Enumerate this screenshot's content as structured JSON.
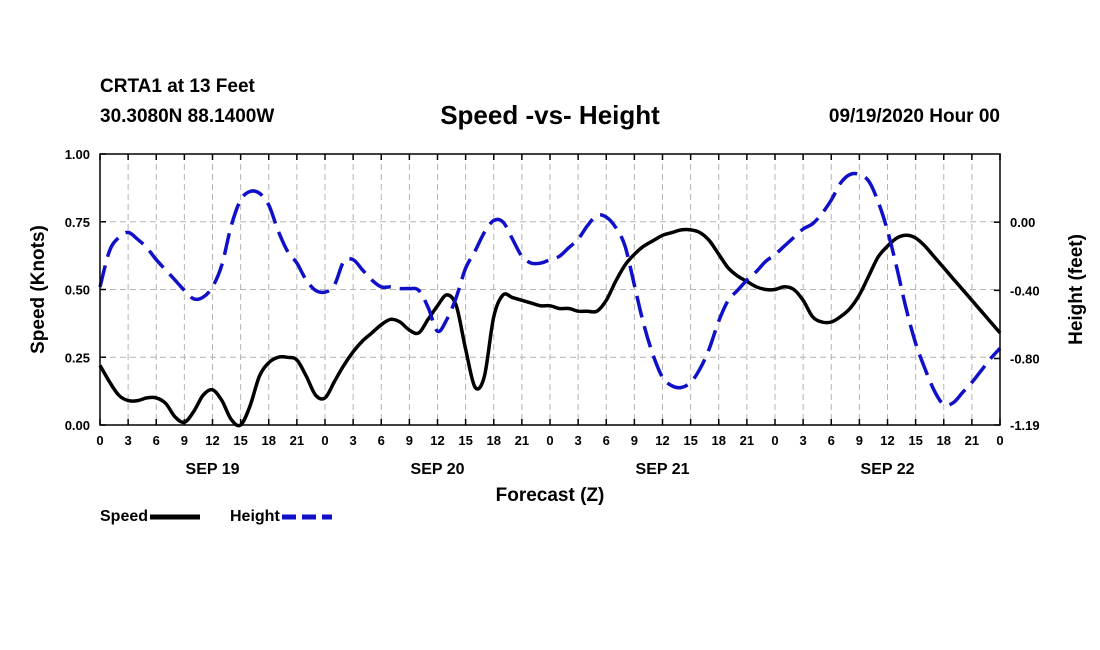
{
  "header": {
    "station": "CRTA1 at 13 Feet",
    "coords": "30.3080N 88.1400W",
    "title": "Speed -vs- Height",
    "datetime": "09/19/2020 Hour 00"
  },
  "legend": {
    "speed": "Speed",
    "height": "Height"
  },
  "colors": {
    "speed": "#000000",
    "height": "#1010c8",
    "grid": "#b4b4b4"
  },
  "chart_data": {
    "type": "line",
    "title": "Speed -vs- Height",
    "xlabel": "Forecast (Z)",
    "ylabel": "Speed (Knots)",
    "y2label": "Height (feet)",
    "xlim": [
      0,
      96
    ],
    "ylim": [
      0,
      1.0
    ],
    "y2lim": [
      -1.19,
      0.4
    ],
    "yticks": [
      "0.00",
      "0.25",
      "0.50",
      "0.75",
      "1.00"
    ],
    "y2ticks": [
      {
        "v": 0.0,
        "label": "0.00"
      },
      {
        "v": -0.4,
        "label": "-0.40"
      },
      {
        "v": -0.8,
        "label": "-0.80"
      },
      {
        "v": -1.19,
        "label": "-1.19"
      }
    ],
    "xtick_labels": [
      "0",
      "3",
      "6",
      "9",
      "12",
      "15",
      "18",
      "21",
      "0",
      "3",
      "6",
      "9",
      "12",
      "15",
      "18",
      "21",
      "0",
      "3",
      "6",
      "9",
      "12",
      "15",
      "18",
      "21",
      "0",
      "3",
      "6",
      "9",
      "12",
      "15",
      "18",
      "21",
      "0"
    ],
    "date_labels": [
      {
        "x": 12,
        "label": "SEP 19"
      },
      {
        "x": 36,
        "label": "SEP 20"
      },
      {
        "x": 60,
        "label": "SEP 21"
      },
      {
        "x": 84,
        "label": "SEP 22"
      }
    ],
    "grid": true,
    "series": [
      {
        "name": "Speed",
        "axis": "left",
        "style": "solid",
        "x": [
          0,
          1,
          2,
          3,
          4,
          5,
          6,
          7,
          8,
          9,
          10,
          11,
          12,
          13,
          14,
          15,
          16,
          17,
          18,
          19,
          20,
          21,
          22,
          23,
          24,
          25,
          26,
          27,
          28,
          29,
          30,
          31,
          32,
          33,
          34,
          35,
          36,
          37,
          38,
          39,
          40,
          41,
          42,
          43,
          44,
          45,
          46,
          47,
          48,
          49,
          50,
          51,
          52,
          53,
          54,
          55,
          56,
          57,
          58,
          59,
          60,
          61,
          62,
          63,
          64,
          65,
          66,
          67,
          68,
          69,
          70,
          71,
          72,
          73,
          74,
          75,
          76,
          77,
          78,
          79,
          80,
          81,
          82,
          83,
          84,
          85,
          86,
          87,
          88,
          89,
          90,
          91,
          92,
          93,
          94,
          95,
          96
        ],
        "values": [
          0.22,
          0.16,
          0.11,
          0.09,
          0.09,
          0.1,
          0.1,
          0.08,
          0.03,
          0.01,
          0.05,
          0.11,
          0.13,
          0.09,
          0.02,
          0.0,
          0.07,
          0.18,
          0.23,
          0.25,
          0.25,
          0.24,
          0.18,
          0.11,
          0.1,
          0.16,
          0.22,
          0.27,
          0.31,
          0.34,
          0.37,
          0.39,
          0.38,
          0.35,
          0.34,
          0.39,
          0.44,
          0.48,
          0.44,
          0.28,
          0.14,
          0.18,
          0.4,
          0.48,
          0.47,
          0.46,
          0.45,
          0.44,
          0.44,
          0.43,
          0.43,
          0.42,
          0.42,
          0.42,
          0.46,
          0.53,
          0.59,
          0.63,
          0.66,
          0.68,
          0.7,
          0.71,
          0.72,
          0.72,
          0.71,
          0.68,
          0.63,
          0.58,
          0.55,
          0.53,
          0.51,
          0.5,
          0.5,
          0.51,
          0.5,
          0.46,
          0.4,
          0.38,
          0.38,
          0.4,
          0.43,
          0.48,
          0.55,
          0.62,
          0.66,
          0.69,
          0.7,
          0.69,
          0.66,
          0.62,
          0.58,
          0.54,
          0.5,
          0.46,
          0.42,
          0.38,
          0.34
        ]
      },
      {
        "name": "Height",
        "axis": "right",
        "style": "dashed",
        "x": [
          0,
          1,
          2,
          3,
          4,
          5,
          6,
          7,
          8,
          9,
          10,
          11,
          12,
          13,
          14,
          15,
          16,
          17,
          18,
          19,
          20,
          21,
          22,
          23,
          24,
          25,
          26,
          27,
          28,
          29,
          30,
          31,
          32,
          33,
          34,
          35,
          36,
          37,
          38,
          39,
          40,
          41,
          42,
          43,
          44,
          45,
          46,
          47,
          48,
          49,
          50,
          51,
          52,
          53,
          54,
          55,
          56,
          57,
          58,
          59,
          60,
          61,
          62,
          63,
          64,
          65,
          66,
          67,
          68,
          69,
          70,
          71,
          72,
          73,
          74,
          75,
          76,
          77,
          78,
          79,
          80,
          81,
          82,
          83,
          84,
          85,
          86,
          87,
          88,
          89,
          90,
          91,
          92,
          93,
          94,
          95,
          96
        ],
        "values": [
          -0.38,
          -0.17,
          -0.09,
          -0.06,
          -0.1,
          -0.15,
          -0.22,
          -0.28,
          -0.34,
          -0.4,
          -0.45,
          -0.44,
          -0.38,
          -0.25,
          -0.02,
          0.13,
          0.18,
          0.17,
          0.1,
          -0.05,
          -0.17,
          -0.24,
          -0.34,
          -0.4,
          -0.41,
          -0.37,
          -0.23,
          -0.22,
          -0.28,
          -0.34,
          -0.38,
          -0.38,
          -0.39,
          -0.39,
          -0.4,
          -0.5,
          -0.64,
          -0.57,
          -0.44,
          -0.27,
          -0.17,
          -0.06,
          0.01,
          0.0,
          -0.1,
          -0.2,
          -0.24,
          -0.24,
          -0.22,
          -0.2,
          -0.15,
          -0.1,
          -0.02,
          0.04,
          0.03,
          -0.03,
          -0.14,
          -0.37,
          -0.6,
          -0.78,
          -0.91,
          -0.96,
          -0.97,
          -0.94,
          -0.86,
          -0.74,
          -0.58,
          -0.46,
          -0.4,
          -0.34,
          -0.29,
          -0.23,
          -0.19,
          -0.14,
          -0.09,
          -0.04,
          -0.01,
          0.05,
          0.13,
          0.23,
          0.28,
          0.28,
          0.24,
          0.12,
          -0.05,
          -0.27,
          -0.51,
          -0.71,
          -0.86,
          -0.99,
          -1.07,
          -1.06,
          -1.0,
          -0.94,
          -0.87,
          -0.8,
          -0.74
        ]
      }
    ]
  }
}
